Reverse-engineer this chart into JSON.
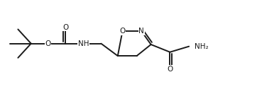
{
  "bg_color": "#ffffff",
  "line_color": "#1a1a1a",
  "lw": 1.4,
  "fs": 7.5,
  "figsize": [
    3.62,
    1.26
  ],
  "dpi": 100,
  "xlim": [
    0.0,
    1.0
  ],
  "ylim": [
    0.0,
    1.0
  ]
}
